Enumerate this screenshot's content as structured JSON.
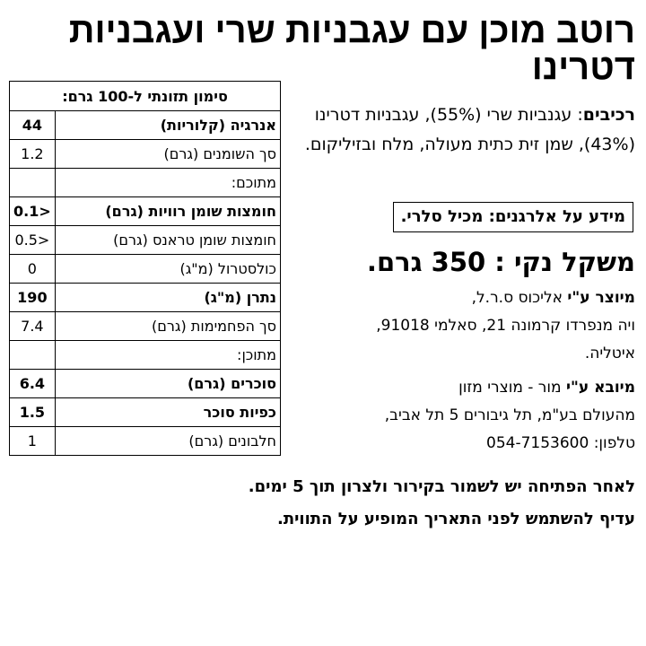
{
  "title": "רוטב מוכן עם עגבניות שרי ועגבניות דטרינו",
  "nutrition": {
    "header": "סימון תזונתי ל-100 גרם:",
    "rows": [
      {
        "label": "אנרגיה (קלוריות)",
        "value": "44",
        "bold": true
      },
      {
        "label": "סך השומנים (גרם)",
        "value": "1.2",
        "bold": false
      },
      {
        "label": "מתוכם:",
        "value": "",
        "bold": false
      },
      {
        "label": "חומצות שומן רוויות (גרם)",
        "value": "0.1>",
        "bold": true
      },
      {
        "label": "חומצות שומן טראנס (גרם)",
        "value": "0.5>",
        "bold": false
      },
      {
        "label": "כולסטרול (מ\"ג)",
        "value": "0",
        "bold": false
      },
      {
        "label": "נתרן (מ\"ג)",
        "value": "190",
        "bold": true
      },
      {
        "label": "סך הפחמימות (גרם)",
        "value": "7.4",
        "bold": false
      },
      {
        "label": "מתוכן:",
        "value": "",
        "bold": false
      },
      {
        "label": "סוכרים (גרם)",
        "value": "6.4",
        "bold": true
      },
      {
        "label": "כפיות סוכר",
        "value": "1.5",
        "bold": true
      },
      {
        "label": "חלבונים (גרם)",
        "value": "1",
        "bold": false
      }
    ]
  },
  "ingredients": {
    "label": "רכיבים",
    "text": ": עגנביות שרי (55%), עגבניות דטרינו (43%), שמן זית כתית מעולה, מלח ובזיליקום."
  },
  "allergen": "מידע על אלרגנים: מכיל סלרי.",
  "net_weight": "משקל נקי : 350 גרם.",
  "manufacturer": {
    "label": "מיוצר ע\"י",
    "line1": " אליכוס ס.ר.ל,",
    "line2": "ויה מנפרדו קרמונה 21,  סאלמי 91018,",
    "line3": "איטליה."
  },
  "importer": {
    "label": "מיובא ע\"י",
    "line1": " מור - מוצרי מזון",
    "line2": "מהעולם בע\"מ, תל גיבורים 5 תל אביב,",
    "line3": "טלפון: 054-7153600"
  },
  "footer": {
    "line1": "לאחר הפתיחה יש לשמור בקירור ולצרון תוך 5 ימים.",
    "line2": "עדיף להשתמש לפני התאריך המופיע על התווית."
  }
}
